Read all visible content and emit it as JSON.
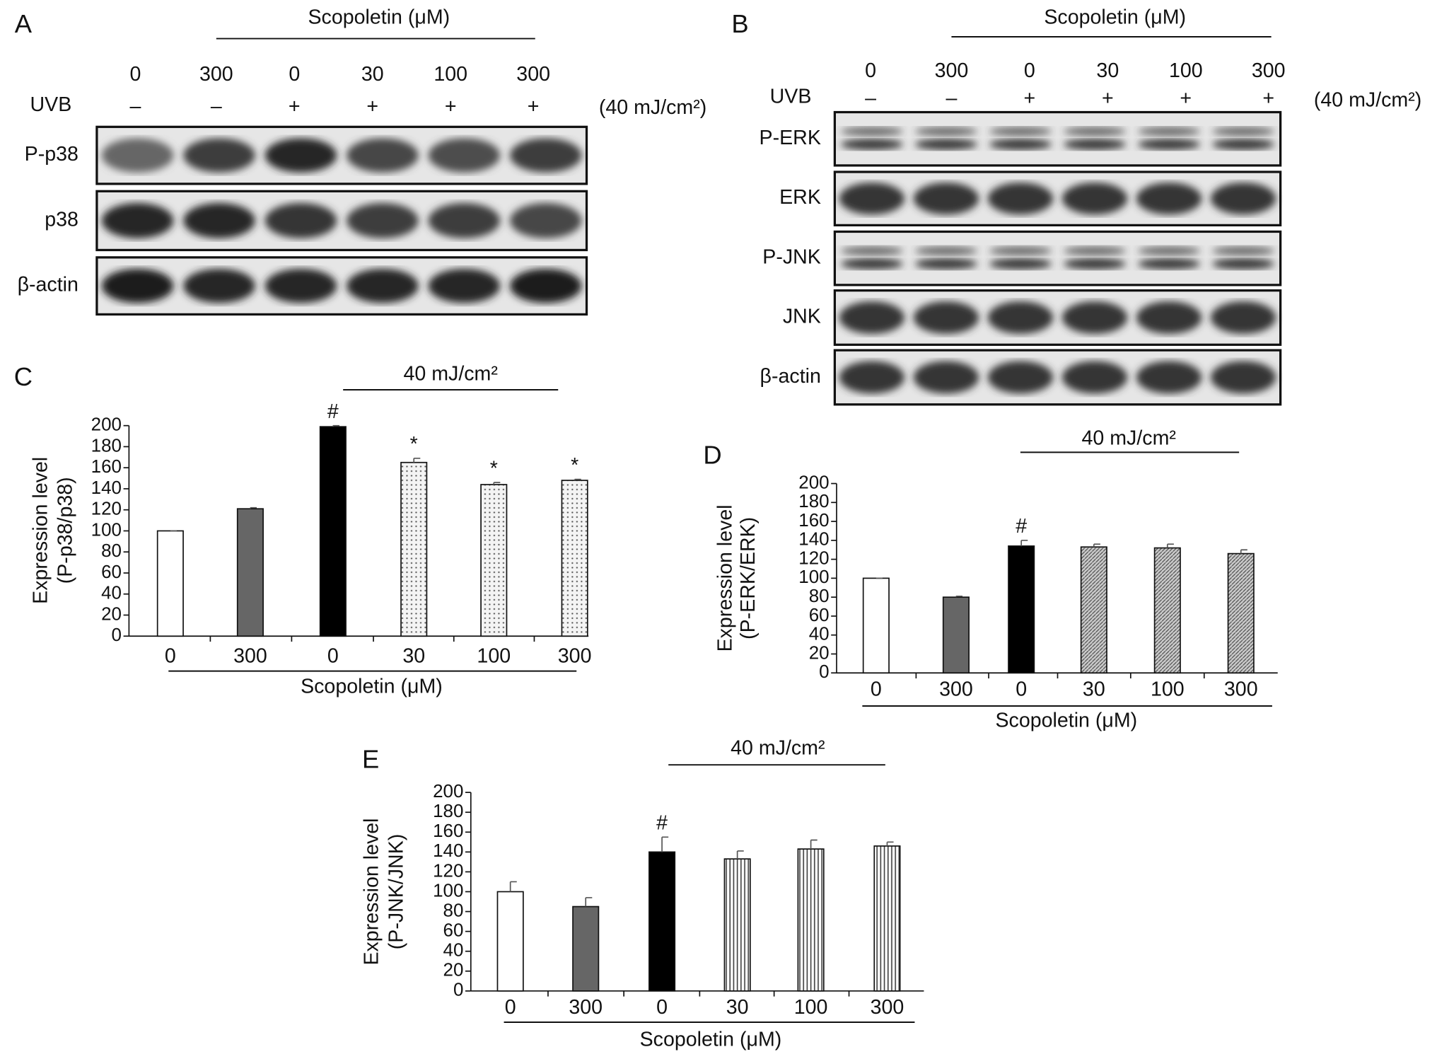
{
  "blots": [
    {
      "panel": "A",
      "header": "Scopoletin (μM)",
      "concentrations": [
        "0",
        "300",
        "0",
        "30",
        "100",
        "300"
      ],
      "uvb_label": "UVB",
      "uvb": [
        "–",
        "–",
        "+",
        "+",
        "+",
        "+"
      ],
      "dose": "(40 mJ/cm²)",
      "rows": [
        "P-p38",
        "p38",
        "β-actin"
      ]
    },
    {
      "panel": "B",
      "header": "Scopoletin (μM)",
      "concentrations": [
        "0",
        "300",
        "0",
        "30",
        "100",
        "300"
      ],
      "uvb_label": "UVB",
      "uvb": [
        "–",
        "–",
        "+",
        "+",
        "+",
        "+"
      ],
      "dose": "(40 mJ/cm²)",
      "rows": [
        "P-ERK",
        "ERK",
        "P-JNK",
        "JNK",
        "β-actin"
      ]
    }
  ],
  "chart_data": [
    {
      "type": "bar",
      "panel": "C",
      "annotation": "40 mJ/cm²",
      "ylabel": [
        "Expression level",
        "(P-p38/p38)"
      ],
      "xlabel": "Scopoletin (μM)",
      "categories": [
        "0",
        "300",
        "0",
        "30",
        "100",
        "300"
      ],
      "values": [
        100,
        121,
        199,
        165,
        144,
        148
      ],
      "errors": [
        0,
        1,
        1,
        4,
        2,
        1
      ],
      "markers": [
        null,
        null,
        "#",
        "*",
        "*",
        "*"
      ],
      "colors": [
        "#ffffff",
        "#666666",
        "#000000",
        "#f2f2f2",
        "#f2f2f2",
        "#f2f2f2"
      ],
      "patterns": [
        null,
        null,
        null,
        "dots",
        "dots",
        "dots"
      ],
      "ylim": [
        0,
        200
      ],
      "yticks": [
        0,
        20,
        40,
        60,
        80,
        100,
        120,
        140,
        160,
        180,
        200
      ]
    },
    {
      "type": "bar",
      "panel": "D",
      "annotation": "40 mJ/cm²",
      "ylabel": [
        "Expression level",
        "(P-ERK/ERK)"
      ],
      "xlabel": "Scopoletin (μM)",
      "categories": [
        "0",
        "300",
        "0",
        "30",
        "100",
        "300"
      ],
      "values": [
        100,
        80,
        134,
        133,
        132,
        126
      ],
      "errors": [
        0,
        1,
        6,
        3,
        4,
        4
      ],
      "markers": [
        null,
        null,
        "#",
        null,
        null,
        null
      ],
      "colors": [
        "#ffffff",
        "#666666",
        "#000000",
        "#bbbbbb",
        "#bbbbbb",
        "#bbbbbb"
      ],
      "patterns": [
        null,
        null,
        null,
        "hatch",
        "hatch",
        "hatch"
      ],
      "ylim": [
        0,
        200
      ],
      "yticks": [
        0,
        20,
        40,
        60,
        80,
        100,
        120,
        140,
        160,
        180,
        200
      ]
    },
    {
      "type": "bar",
      "panel": "E",
      "annotation": "40 mJ/cm²",
      "ylabel": [
        "Expression level",
        "(P-JNK/JNK)"
      ],
      "xlabel": "Scopoletin (μM)",
      "categories": [
        "0",
        "300",
        "0",
        "30",
        "100",
        "300"
      ],
      "values": [
        100,
        85,
        140,
        133,
        143,
        146
      ],
      "errors": [
        10,
        9,
        15,
        8,
        9,
        4
      ],
      "markers": [
        null,
        null,
        "#",
        null,
        null,
        null
      ],
      "colors": [
        "#ffffff",
        "#666666",
        "#000000",
        "#cccccc",
        "#cccccc",
        "#cccccc"
      ],
      "patterns": [
        null,
        null,
        null,
        "vlines",
        "vlines",
        "vlines"
      ],
      "ylim": [
        0,
        200
      ],
      "yticks": [
        0,
        20,
        40,
        60,
        80,
        100,
        120,
        140,
        160,
        180,
        200
      ]
    }
  ]
}
